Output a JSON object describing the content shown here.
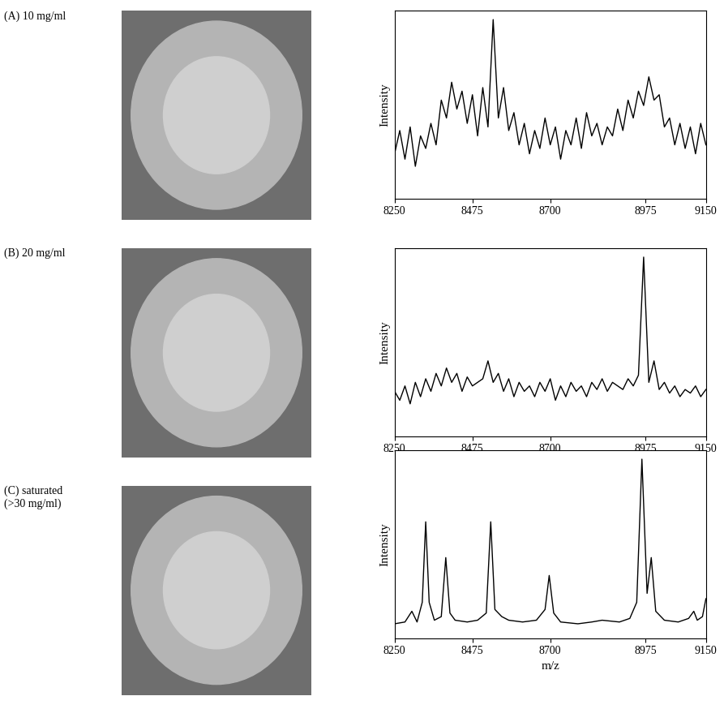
{
  "chart_data": [
    {
      "type": "line",
      "title": "(A) 10 mg/ml",
      "ylabel": "Intensity",
      "color": "#000000",
      "x": [
        8250,
        8265,
        8280,
        8295,
        8310,
        8325,
        8340,
        8355,
        8370,
        8385,
        8400,
        8415,
        8430,
        8445,
        8460,
        8475,
        8490,
        8505,
        8520,
        8535,
        8550,
        8565,
        8580,
        8595,
        8610,
        8625,
        8640,
        8655,
        8670,
        8685,
        8700,
        8715,
        8730,
        8745,
        8760,
        8775,
        8790,
        8805,
        8820,
        8835,
        8850,
        8865,
        8880,
        8895,
        8910,
        8925,
        8940,
        8955,
        8970,
        8985,
        9000,
        9015,
        9030,
        9045,
        9060,
        9075,
        9090,
        9105,
        9120,
        9135,
        9150
      ],
      "values": [
        25,
        38,
        22,
        40,
        18,
        35,
        28,
        42,
        30,
        55,
        45,
        65,
        50,
        60,
        42,
        58,
        35,
        62,
        40,
        100,
        45,
        62,
        38,
        48,
        30,
        42,
        25,
        38,
        28,
        45,
        30,
        40,
        22,
        38,
        30,
        45,
        28,
        48,
        35,
        42,
        30,
        40,
        35,
        50,
        38,
        55,
        45,
        60,
        52,
        68,
        55,
        58,
        40,
        45,
        30,
        42,
        28,
        40,
        25,
        42,
        30
      ],
      "xlim": [
        8250,
        9150
      ],
      "xticks": [
        8250,
        8475,
        8700,
        8975,
        9150
      ],
      "ylim": [
        0,
        105
      ],
      "yticks": [],
      "tick_labels": "x"
    },
    {
      "type": "line",
      "title": "(B) 20 mg/ml",
      "ylabel": "Intensity",
      "color": "#000000",
      "x": [
        8250,
        8265,
        8280,
        8295,
        8310,
        8325,
        8340,
        8355,
        8370,
        8385,
        8400,
        8415,
        8430,
        8445,
        8460,
        8475,
        8490,
        8505,
        8520,
        8535,
        8550,
        8565,
        8580,
        8595,
        8610,
        8625,
        8640,
        8655,
        8670,
        8685,
        8700,
        8715,
        8730,
        8745,
        8760,
        8775,
        8790,
        8805,
        8820,
        8835,
        8850,
        8865,
        8880,
        8895,
        8910,
        8925,
        8940,
        8955,
        8970,
        8985,
        9000,
        9015,
        9030,
        9045,
        9060,
        9075,
        9090,
        9105,
        9120,
        9135,
        9150
      ],
      "values": [
        25,
        20,
        28,
        18,
        30,
        22,
        32,
        25,
        35,
        28,
        38,
        30,
        35,
        25,
        33,
        28,
        30,
        32,
        42,
        30,
        35,
        25,
        32,
        22,
        30,
        25,
        28,
        22,
        30,
        25,
        32,
        20,
        28,
        22,
        30,
        25,
        28,
        22,
        30,
        26,
        32,
        25,
        30,
        28,
        26,
        32,
        28,
        34,
        100,
        30,
        42,
        26,
        30,
        24,
        28,
        22,
        26,
        24,
        28,
        22,
        26
      ],
      "xlim": [
        8250,
        9150
      ],
      "xticks": [
        8250,
        8475,
        8700,
        8975,
        9150
      ],
      "ylim": [
        0,
        105
      ],
      "yticks": [],
      "tick_labels": "x"
    },
    {
      "type": "line",
      "title": "(C) saturated\n(>30 mg/ml)",
      "ylabel": "Intensity",
      "xlabel": "m/z",
      "color": "#000000",
      "x": [
        8250,
        8280,
        8300,
        8315,
        8330,
        8340,
        8350,
        8365,
        8385,
        8398,
        8410,
        8425,
        8460,
        8490,
        8515,
        8528,
        8540,
        8560,
        8580,
        8620,
        8660,
        8685,
        8697,
        8710,
        8730,
        8780,
        8820,
        8850,
        8900,
        8930,
        8950,
        8965,
        8980,
        8992,
        9005,
        9030,
        9070,
        9100,
        9115,
        9125,
        9140,
        9150
      ],
      "values": [
        8,
        9,
        15,
        9,
        20,
        65,
        20,
        10,
        12,
        45,
        14,
        10,
        9,
        10,
        14,
        65,
        16,
        12,
        10,
        9,
        10,
        16,
        35,
        14,
        9,
        8,
        9,
        10,
        9,
        11,
        20,
        100,
        25,
        45,
        15,
        10,
        9,
        11,
        15,
        10,
        12,
        22
      ],
      "xlim": [
        8250,
        9150
      ],
      "xticks": [
        8250,
        8475,
        8700,
        8975,
        9150
      ],
      "ylim": [
        0,
        105
      ],
      "yticks": [],
      "tick_labels": "x"
    }
  ]
}
